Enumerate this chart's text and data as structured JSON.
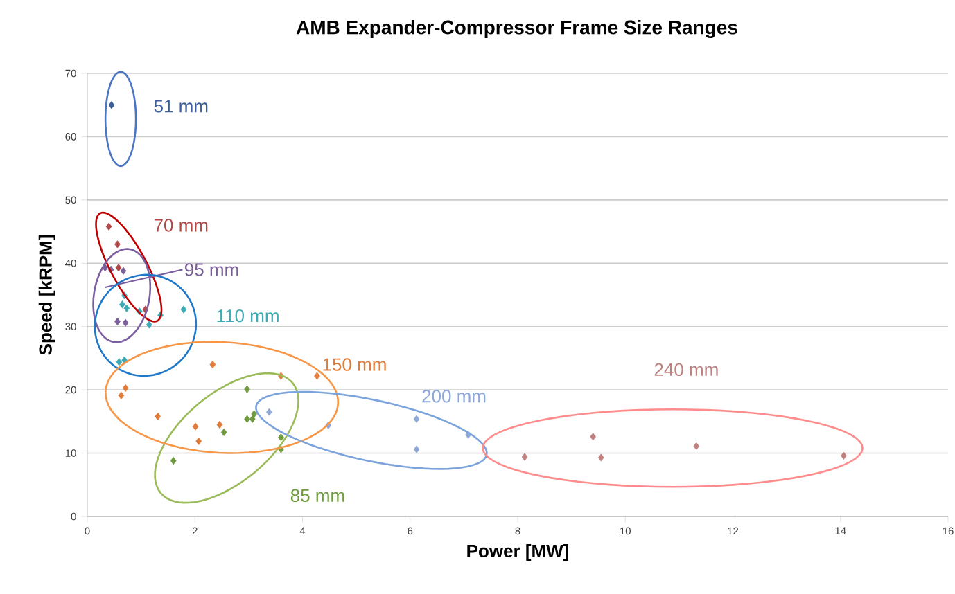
{
  "chart_data": {
    "type": "scatter",
    "title": "AMB Expander-Compressor Frame Size Ranges",
    "xlabel": "Power [MW]",
    "ylabel": "Speed [kRPM]",
    "xlim": [
      0,
      16
    ],
    "xticks": [
      0,
      2,
      4,
      6,
      8,
      10,
      12,
      14,
      16
    ],
    "ylim": [
      0,
      70
    ],
    "yticks": [
      0,
      10,
      20,
      30,
      40,
      50,
      60,
      70
    ],
    "grid": "y",
    "marker": "diamond",
    "series": [
      {
        "name": "51 mm",
        "color": "#3a5f9a",
        "x": [
          0.45
        ],
        "values": [
          65
        ]
      },
      {
        "name": "70 mm",
        "color": "#b04848",
        "x": [
          0.4,
          0.56,
          0.58,
          1.08
        ],
        "values": [
          45.8,
          43.0,
          39.3,
          32.7
        ]
      },
      {
        "name": "85 mm",
        "color": "#6e9a3d",
        "x": [
          1.6,
          2.54,
          2.97,
          2.97,
          3.1,
          3.07,
          3.6,
          3.6
        ],
        "values": [
          8.8,
          13.3,
          20.1,
          15.4,
          16.2,
          15.4,
          12.5,
          10.6
        ]
      },
      {
        "name": "95 mm",
        "color": "#7a5f99",
        "x": [
          0.33,
          0.44,
          0.67,
          0.56,
          0.71
        ],
        "values": [
          39.3,
          39.0,
          38.8,
          30.8,
          30.6
        ]
      },
      {
        "name": "110 mm",
        "color": "#3eaab5",
        "x": [
          0.69,
          0.65,
          0.73,
          0.97,
          1.15,
          1.36,
          1.79,
          0.59,
          0.69
        ],
        "values": [
          34.9,
          33.5,
          32.9,
          32.4,
          30.3,
          31.8,
          32.7,
          24.4,
          24.7
        ]
      },
      {
        "name": "150 mm",
        "color": "#e07b39",
        "x": [
          0.63,
          0.71,
          1.31,
          2.33,
          2.01,
          2.07,
          2.46,
          3.6,
          4.27
        ],
        "values": [
          19.1,
          20.3,
          15.8,
          24.0,
          14.2,
          11.9,
          14.5,
          22.2,
          22.2
        ]
      },
      {
        "name": "200 mm",
        "color": "#8ea8d8",
        "x": [
          3.38,
          4.48,
          6.12,
          6.12,
          7.08
        ],
        "values": [
          16.5,
          14.4,
          15.4,
          10.6,
          12.9
        ]
      },
      {
        "name": "240 mm",
        "color": "#c08080",
        "x": [
          8.13,
          9.4,
          9.55,
          11.32,
          14.06
        ],
        "values": [
          9.4,
          12.6,
          9.3,
          11.1,
          9.6
        ]
      }
    ]
  }
}
